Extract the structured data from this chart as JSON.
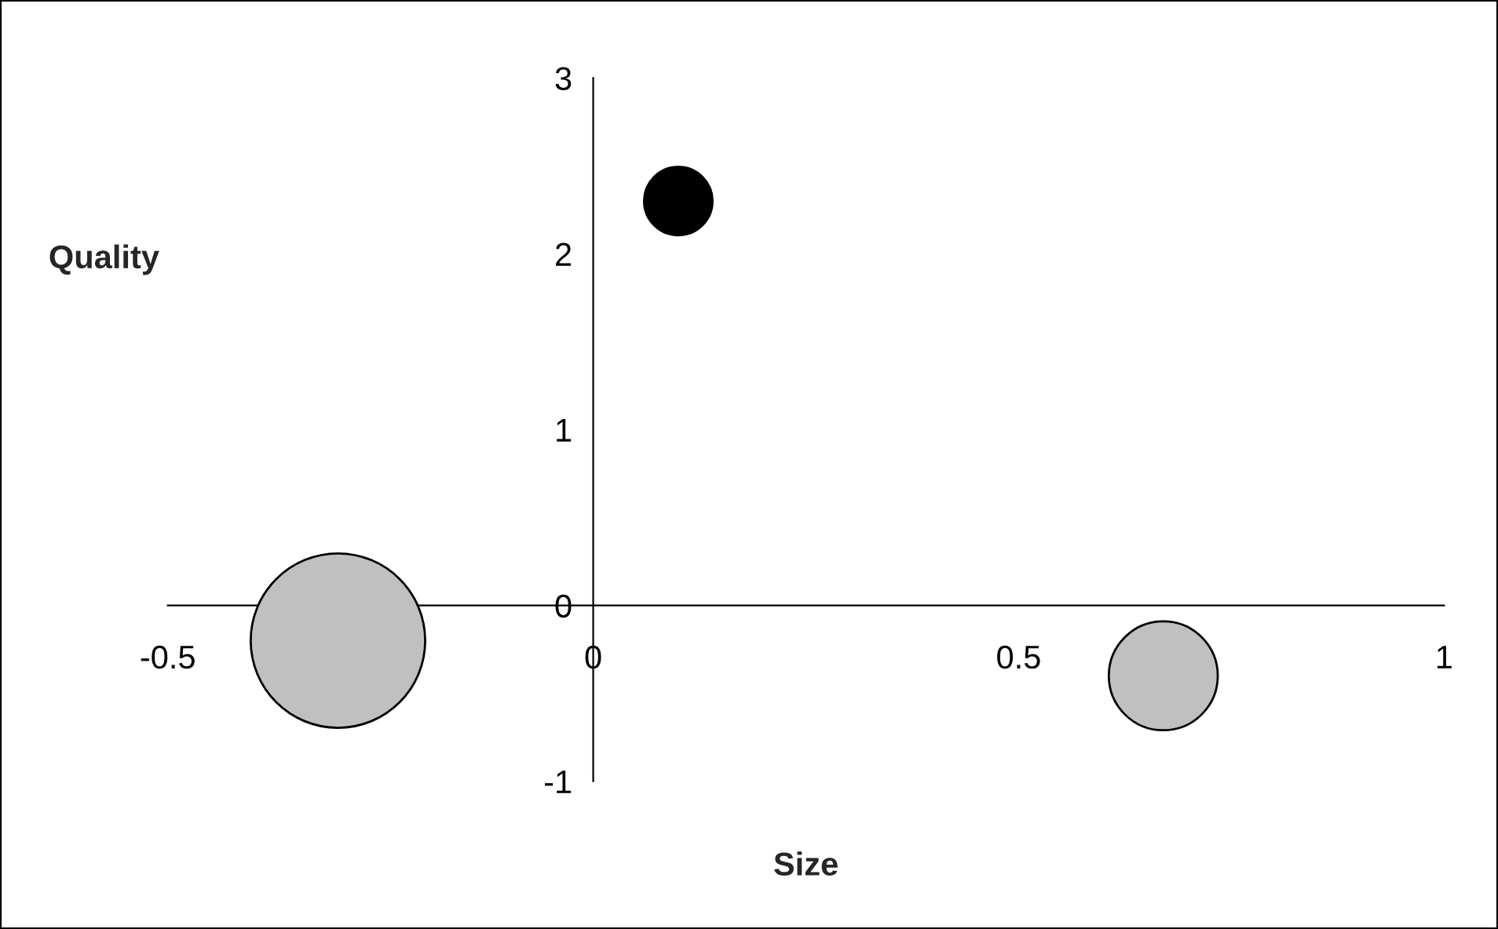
{
  "chart_data": {
    "type": "bubble",
    "xlabel": "Size",
    "ylabel": "Quality",
    "series": [
      {
        "x": [
          0.1,
          -0.3,
          0.67
        ],
        "values": [
          2.3,
          -0.2,
          -0.4
        ],
        "sizes": [
          0.154,
          1,
          0.39
        ],
        "colors": [
          "#000000",
          "#c0c0c0",
          "#c0c0c0"
        ]
      }
    ],
    "xlim": [
      -0.5,
      1
    ],
    "xticks": [
      -0.5,
      0,
      0.5,
      1
    ],
    "ylim": [
      -1,
      3
    ],
    "yticks": [
      -1,
      0,
      1,
      2,
      3
    ],
    "grid": false,
    "legend": false
  }
}
